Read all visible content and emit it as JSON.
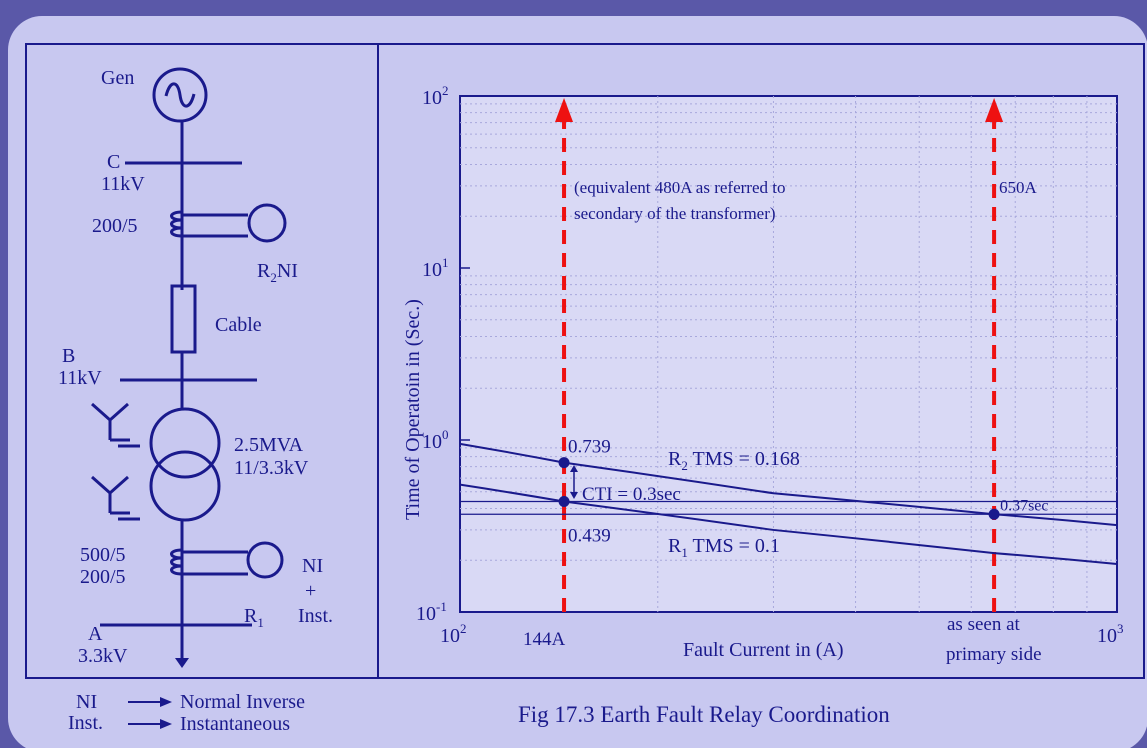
{
  "colors": {
    "frame": "#5a58a8",
    "panel": "#c8c8f0",
    "ink": "#1a1a8c",
    "plot_bg": "#d9d9f5",
    "arrow": "#ee1111"
  },
  "single_line": {
    "gen_label": "Gen",
    "bus_c": {
      "name": "C",
      "voltage": "11kV"
    },
    "ct_c_ratio": "200/5",
    "relay_r2_label": "R",
    "relay_r2_sub": "2",
    "relay_r2_type": "NI",
    "cable_label": "Cable",
    "bus_b": {
      "name": "B",
      "voltage": "11kV"
    },
    "transformer_rating": "2.5MVA",
    "transformer_voltage": "11/3.3kV",
    "ct_a_ratio_1": "500/5",
    "ct_a_ratio_2": "200/5",
    "relay_r1_type": "NI",
    "relay_r1_plus": "+",
    "relay_r1_label": "R",
    "relay_r1_sub": "1",
    "relay_r1_inst": "Inst.",
    "bus_a": {
      "name": "A",
      "voltage": "3.3kV"
    }
  },
  "legend": {
    "items": [
      {
        "abbr": "NI",
        "meaning": "Normal Inverse"
      },
      {
        "abbr": "Inst.",
        "meaning": "Instantaneous"
      }
    ]
  },
  "chart_data": {
    "type": "line",
    "x_scale": "log",
    "y_scale": "log",
    "xlim": [
      100,
      1000
    ],
    "ylim": [
      0.1,
      100
    ],
    "xlabel": "Fault Current in (A)",
    "ylabel": "Time of Operatoin in  (Sec.)",
    "x_ticks": [
      {
        "value": 100,
        "base": "10",
        "exp": "2"
      },
      {
        "value": 1000,
        "base": "10",
        "exp": "3"
      }
    ],
    "y_ticks": [
      {
        "value": 0.1,
        "base": "10",
        "exp": "-1"
      },
      {
        "value": 1,
        "base": "10",
        "exp": "0"
      },
      {
        "value": 10,
        "base": "10",
        "exp": "1"
      },
      {
        "value": 100,
        "base": "10",
        "exp": "2"
      }
    ],
    "grid": true,
    "series": [
      {
        "label_main": "R",
        "label_sub": "2",
        "label_rest": " TMS = 0.168",
        "x": [
          100,
          144,
          300,
          650,
          1000
        ],
        "y": [
          0.95,
          0.739,
          0.49,
          0.37,
          0.32
        ]
      },
      {
        "label_main": "R",
        "label_sub": "1",
        "label_rest": " TMS = 0.1",
        "x": [
          100,
          144,
          300,
          650,
          1000
        ],
        "y": [
          0.55,
          0.439,
          0.3,
          0.22,
          0.19
        ]
      }
    ],
    "reference_lines": [
      {
        "axis": "x",
        "value": 144,
        "label": "144A",
        "note": "(equivalent 480A as referred to\nsecondary of the transformer)"
      },
      {
        "axis": "x",
        "value": 650,
        "label": "as seen at\nprimary side",
        "note": "650A"
      },
      {
        "axis": "y",
        "value": 0.439
      },
      {
        "axis": "y",
        "value": 0.37
      }
    ],
    "points": [
      {
        "x": 144,
        "y": 0.739,
        "label": "0.739"
      },
      {
        "x": 144,
        "y": 0.439,
        "label": "0.439"
      },
      {
        "x": 650,
        "y": 0.37,
        "label": "0.37sec"
      }
    ],
    "annotations": {
      "cti": "CTI = 0.3sec"
    }
  },
  "caption": "Fig 17.3 Earth Fault Relay Coordination"
}
